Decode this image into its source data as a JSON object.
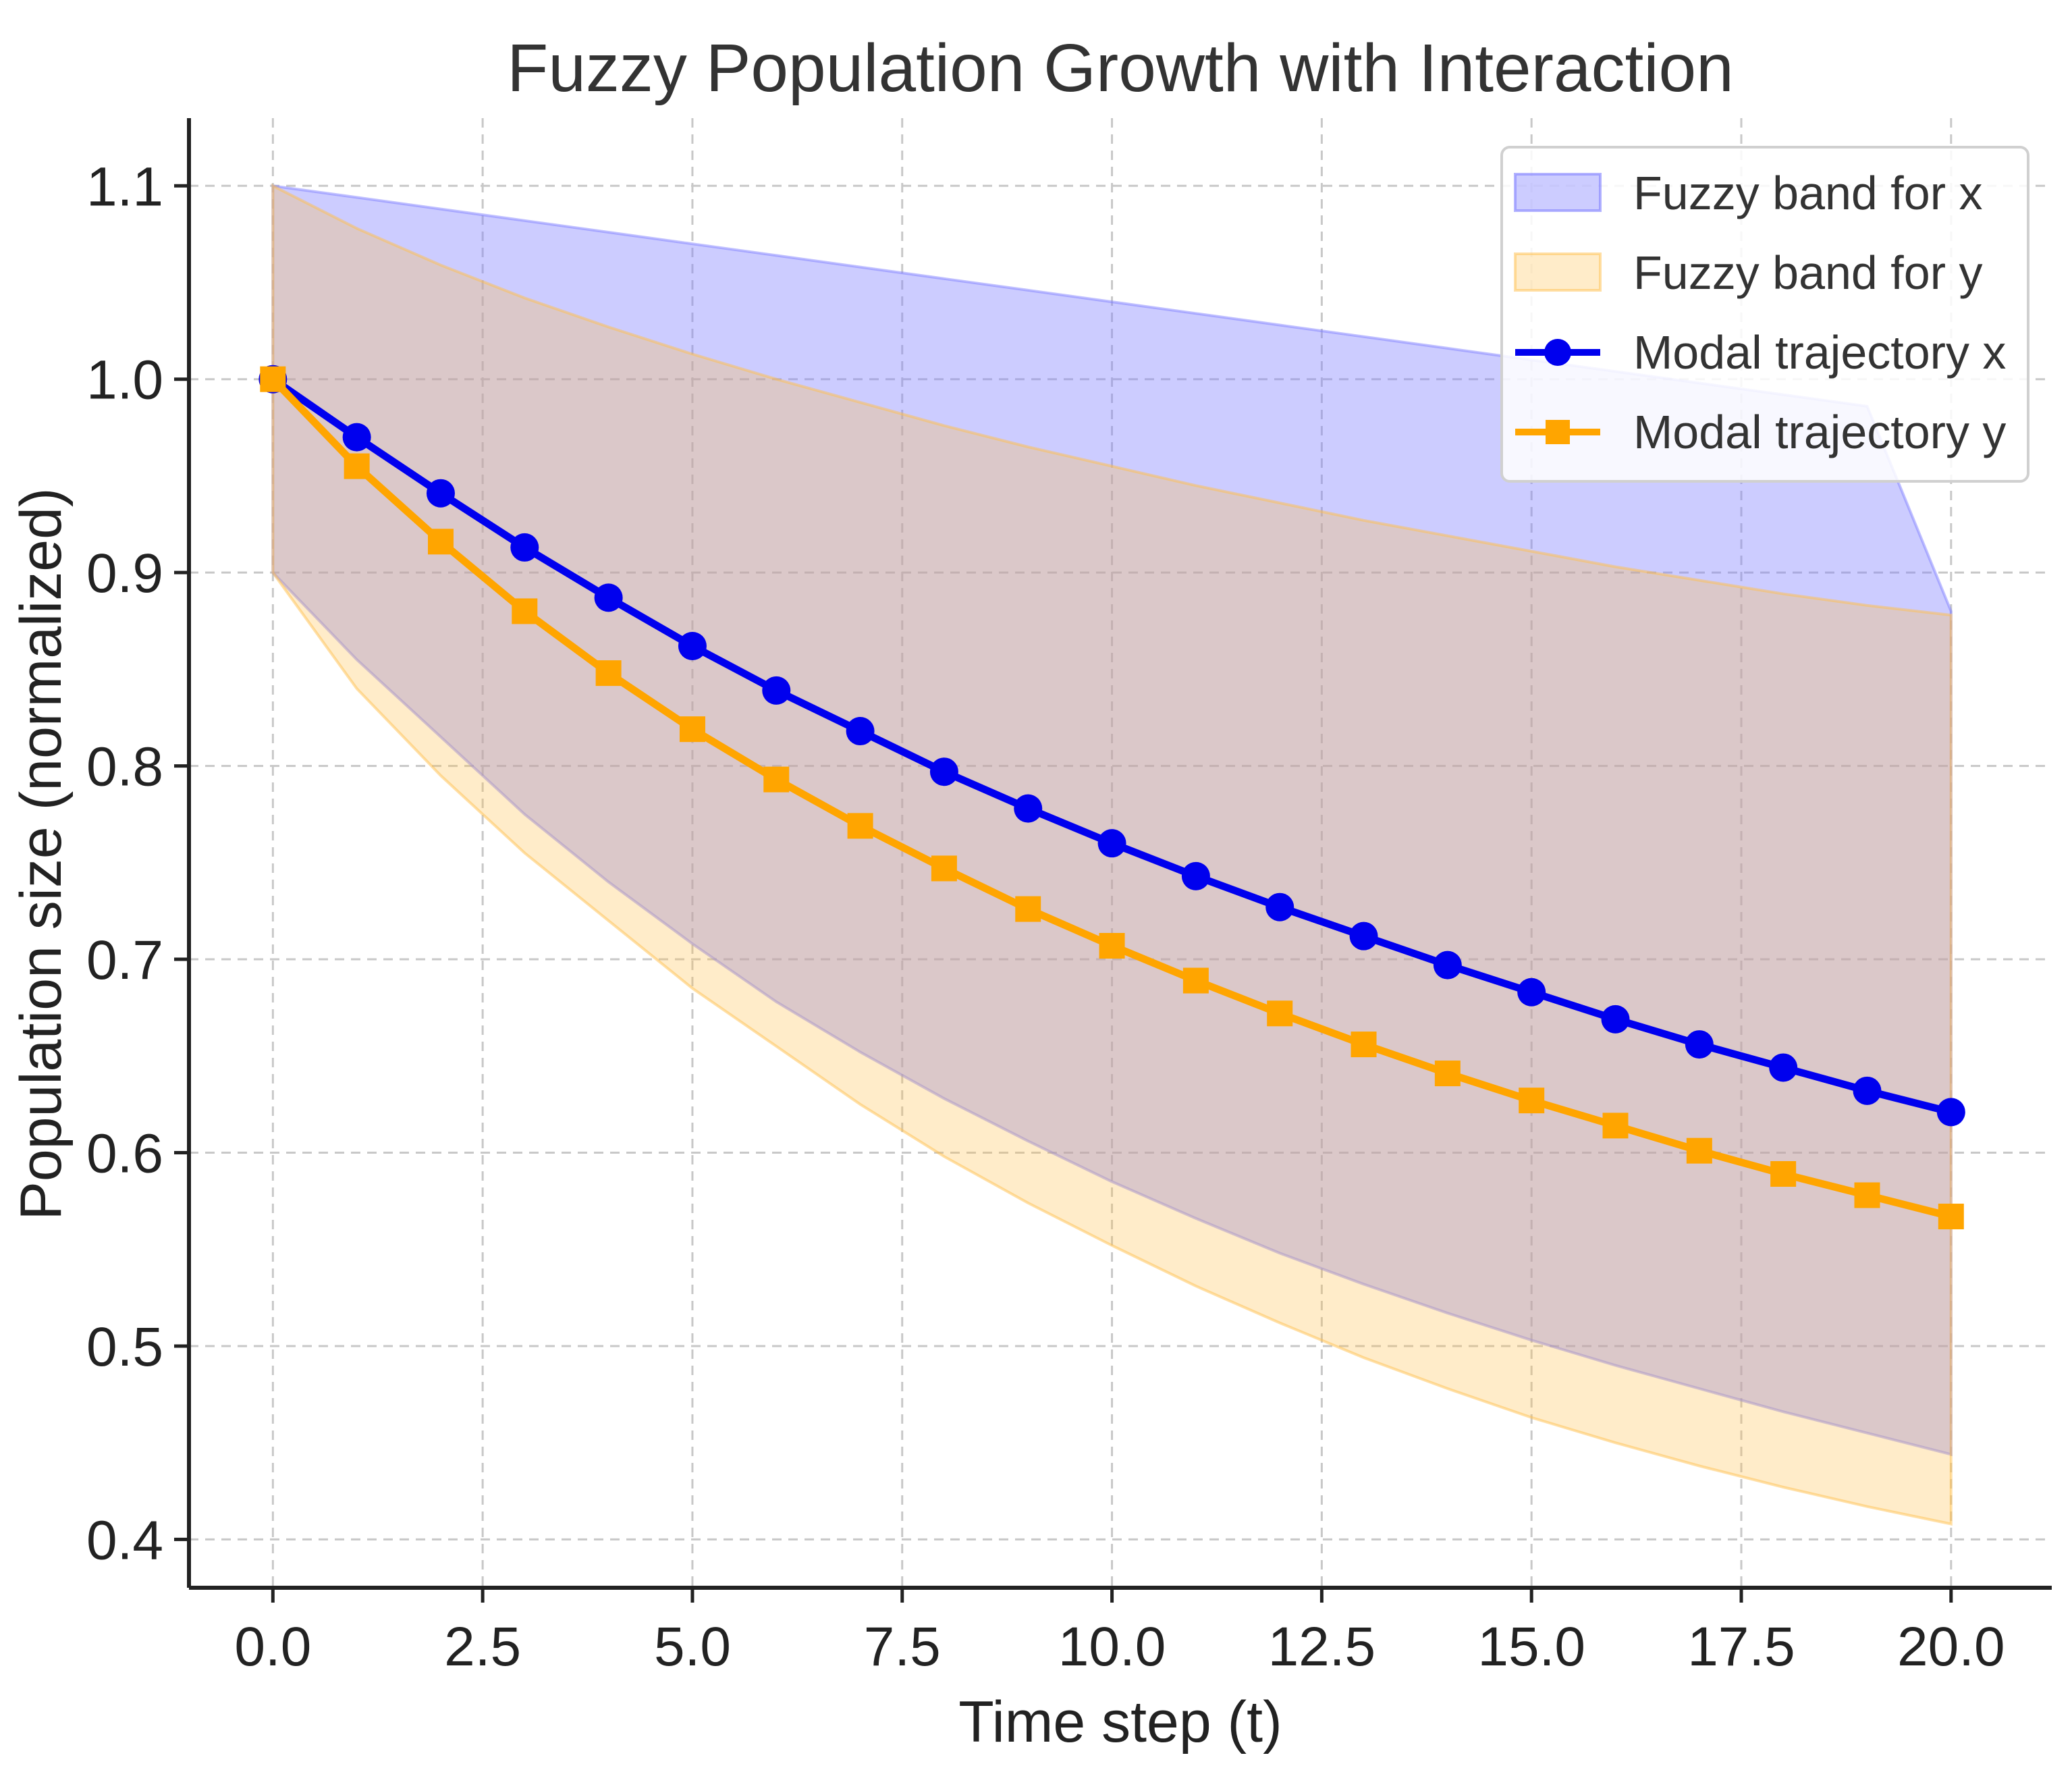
{
  "chart_data": {
    "type": "line",
    "title": "Fuzzy Population Growth with Interaction",
    "xlabel": "Time step (t)",
    "ylabel": "Population size (normalized)",
    "xlim": [
      -1,
      21.2
    ],
    "ylim": [
      0.375,
      1.135
    ],
    "xticks": [
      0,
      2.5,
      5,
      7.5,
      10,
      12.5,
      15,
      17.5,
      20
    ],
    "xtick_labels": [
      "0.0",
      "2.5",
      "5.0",
      "7.5",
      "10.0",
      "12.5",
      "15.0",
      "17.5",
      "20.0"
    ],
    "yticks": [
      0.4,
      0.5,
      0.6,
      0.7,
      0.8,
      0.9,
      1.0,
      1.1
    ],
    "ytick_labels": [
      "0.4",
      "0.5",
      "0.6",
      "0.7",
      "0.8",
      "0.9",
      "1.0",
      "1.1"
    ],
    "grid": true,
    "legend_position": "top-right",
    "x": [
      0,
      1,
      2,
      3,
      4,
      5,
      6,
      7,
      8,
      9,
      10,
      11,
      12,
      13,
      14,
      15,
      16,
      17,
      18,
      19,
      20
    ],
    "bands": [
      {
        "name": "Fuzzy band for x",
        "color": "#8080ff",
        "lower": [
          0.9,
          0.855,
          0.815,
          0.775,
          0.74,
          0.708,
          0.678,
          0.652,
          0.628,
          0.606,
          0.585,
          0.566,
          0.548,
          0.532,
          0.517,
          0.503,
          0.49,
          0.478,
          0.466,
          0.455,
          0.444
        ],
        "upper": [
          1.1,
          1.094,
          1.088,
          1.082,
          1.076,
          1.07,
          1.064,
          1.058,
          1.052,
          1.046,
          1.04,
          1.034,
          1.028,
          1.022,
          1.016,
          1.01,
          1.004,
          0.998,
          0.992,
          0.986,
          0.88
        ]
      },
      {
        "name": "Fuzzy band for y",
        "color": "#ffc04d",
        "lower": [
          0.9,
          0.84,
          0.795,
          0.755,
          0.72,
          0.685,
          0.655,
          0.625,
          0.598,
          0.574,
          0.552,
          0.531,
          0.512,
          0.494,
          0.478,
          0.463,
          0.45,
          0.438,
          0.427,
          0.417,
          0.408
        ],
        "upper": [
          1.1,
          1.078,
          1.059,
          1.042,
          1.027,
          1.013,
          1.0,
          0.988,
          0.976,
          0.965,
          0.955,
          0.945,
          0.936,
          0.927,
          0.919,
          0.911,
          0.903,
          0.896,
          0.889,
          0.883,
          0.878
        ]
      }
    ],
    "series": [
      {
        "name": "Modal trajectory x",
        "color": "#0000ee",
        "marker": "circle",
        "values": [
          1.0,
          0.97,
          0.941,
          0.913,
          0.887,
          0.862,
          0.839,
          0.818,
          0.797,
          0.778,
          0.76,
          0.743,
          0.727,
          0.712,
          0.697,
          0.683,
          0.669,
          0.656,
          0.644,
          0.632,
          0.621
        ]
      },
      {
        "name": "Modal trajectory y",
        "color": "#ffa500",
        "marker": "square",
        "values": [
          1.0,
          0.955,
          0.916,
          0.88,
          0.848,
          0.819,
          0.793,
          0.769,
          0.747,
          0.726,
          0.707,
          0.689,
          0.672,
          0.656,
          0.641,
          0.627,
          0.614,
          0.601,
          0.589,
          0.578,
          0.567
        ]
      }
    ]
  }
}
